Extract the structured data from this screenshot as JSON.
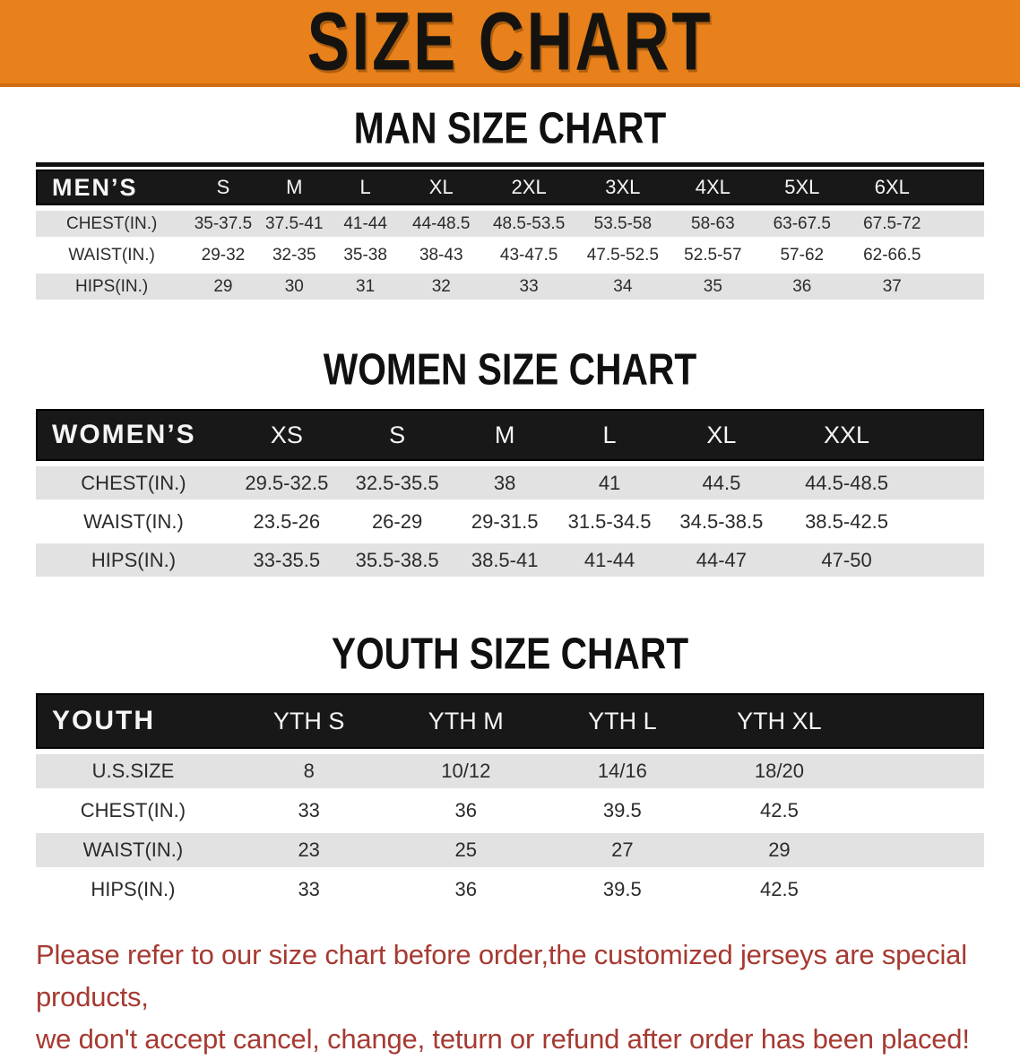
{
  "banner": {
    "title": "SIZE CHART",
    "background": "#e8811b",
    "text_color": "#151310"
  },
  "sections": [
    {
      "heading": "MAN SIZE CHART",
      "table": {
        "group_label": "MEN’S",
        "columns": [
          "S",
          "M",
          "L",
          "XL",
          "2XL",
          "3XL",
          "4XL",
          "5XL",
          "6XL"
        ],
        "rows": [
          {
            "label": "CHEST(IN.)",
            "values": [
              "35-37.5",
              "37.5-41",
              "41-44",
              "44-48.5",
              "48.5-53.5",
              "53.5-58",
              "58-63",
              "63-67.5",
              "67.5-72"
            ]
          },
          {
            "label": "WAIST(IN.)",
            "values": [
              "29-32",
              "32-35",
              "35-38",
              "38-43",
              "43-47.5",
              "47.5-52.5",
              "52.5-57",
              "57-62",
              "62-66.5"
            ]
          },
          {
            "label": "HIPS(IN.)",
            "values": [
              "29",
              "30",
              "31",
              "32",
              "33",
              "34",
              "35",
              "36",
              "37"
            ]
          }
        ]
      }
    },
    {
      "heading": "WOMEN SIZE CHART",
      "table": {
        "group_label": "WOMEN’S",
        "columns": [
          "XS",
          "S",
          "M",
          "L",
          "XL",
          "XXL"
        ],
        "rows": [
          {
            "label": "CHEST(IN.)",
            "values": [
              "29.5-32.5",
              "32.5-35.5",
              "38",
              "41",
              "44.5",
              "44.5-48.5"
            ]
          },
          {
            "label": "WAIST(IN.)",
            "values": [
              "23.5-26",
              "26-29",
              "29-31.5",
              "31.5-34.5",
              "34.5-38.5",
              "38.5-42.5"
            ]
          },
          {
            "label": "HIPS(IN.)",
            "values": [
              "33-35.5",
              "35.5-38.5",
              "38.5-41",
              "41-44",
              "44-47",
              "47-50"
            ]
          }
        ]
      }
    },
    {
      "heading": "YOUTH SIZE CHART",
      "table": {
        "group_label": "YOUTH",
        "columns": [
          "YTH S",
          "YTH M",
          "YTH L",
          "YTH XL"
        ],
        "rows": [
          {
            "label": "U.S.SIZE",
            "values": [
              "8",
              "10/12",
              "14/16",
              "18/20"
            ]
          },
          {
            "label": "CHEST(IN.)",
            "values": [
              "33",
              "36",
              "39.5",
              "42.5"
            ]
          },
          {
            "label": "WAIST(IN.)",
            "values": [
              "23",
              "25",
              "27",
              "29"
            ]
          },
          {
            "label": "HIPS(IN.)",
            "values": [
              "33",
              "36",
              "39.5",
              "42.5"
            ]
          }
        ]
      }
    }
  ],
  "disclaimer": {
    "lines": [
      "Please refer to our size chart before order,the customized jerseys are special products,",
      "we don't accept cancel, change, teturn or refund after order has been placed!"
    ],
    "color": "#a63a32"
  }
}
